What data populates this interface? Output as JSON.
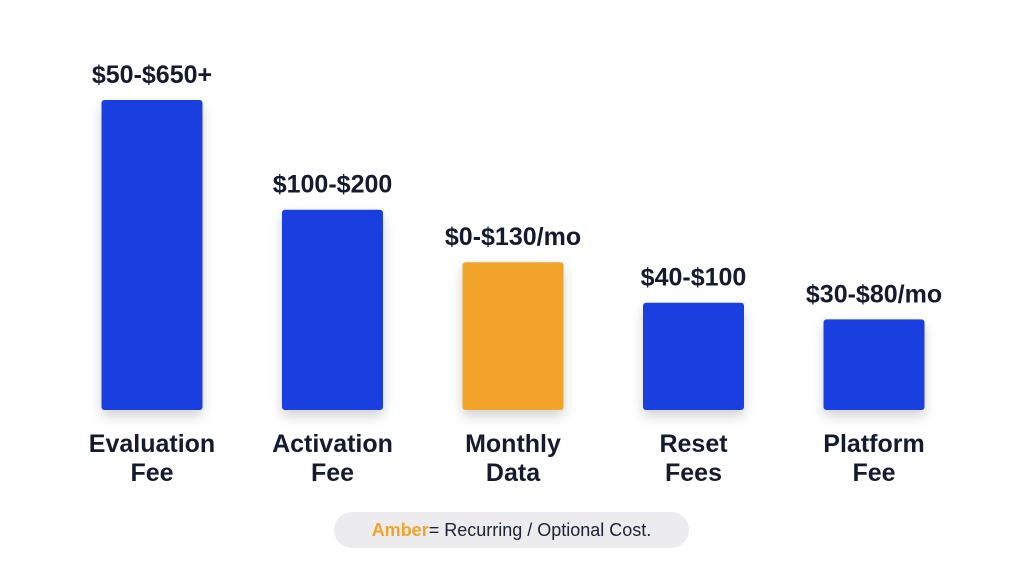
{
  "chart_data": {
    "type": "bar",
    "title": "",
    "xlabel": "",
    "ylabel": "",
    "grid": false,
    "legend_position": "bottom",
    "categories": [
      [
        "Evaluation",
        "Fee"
      ],
      [
        "Activation",
        "Fee"
      ],
      [
        "Monthly",
        "Data"
      ],
      [
        "Reset",
        "Fees"
      ],
      [
        "Platform",
        "Fee"
      ]
    ],
    "value_labels": [
      "$50-$650+",
      "$100-$200",
      "$0-$130/mo",
      "$40-$100",
      "$30-$80/mo"
    ],
    "values": [
      650,
      420,
      310,
      225,
      190
    ],
    "bar_colors": [
      "#1a3fe0",
      "#1a3fe0",
      "#f2a42a",
      "#1a3fe0",
      "#1a3fe0"
    ],
    "ylim": [
      0,
      650
    ]
  },
  "legend": {
    "key_text": "Amber",
    "key_color": "#f2a42a",
    "description": " = Recurring / Optional Cost."
  }
}
